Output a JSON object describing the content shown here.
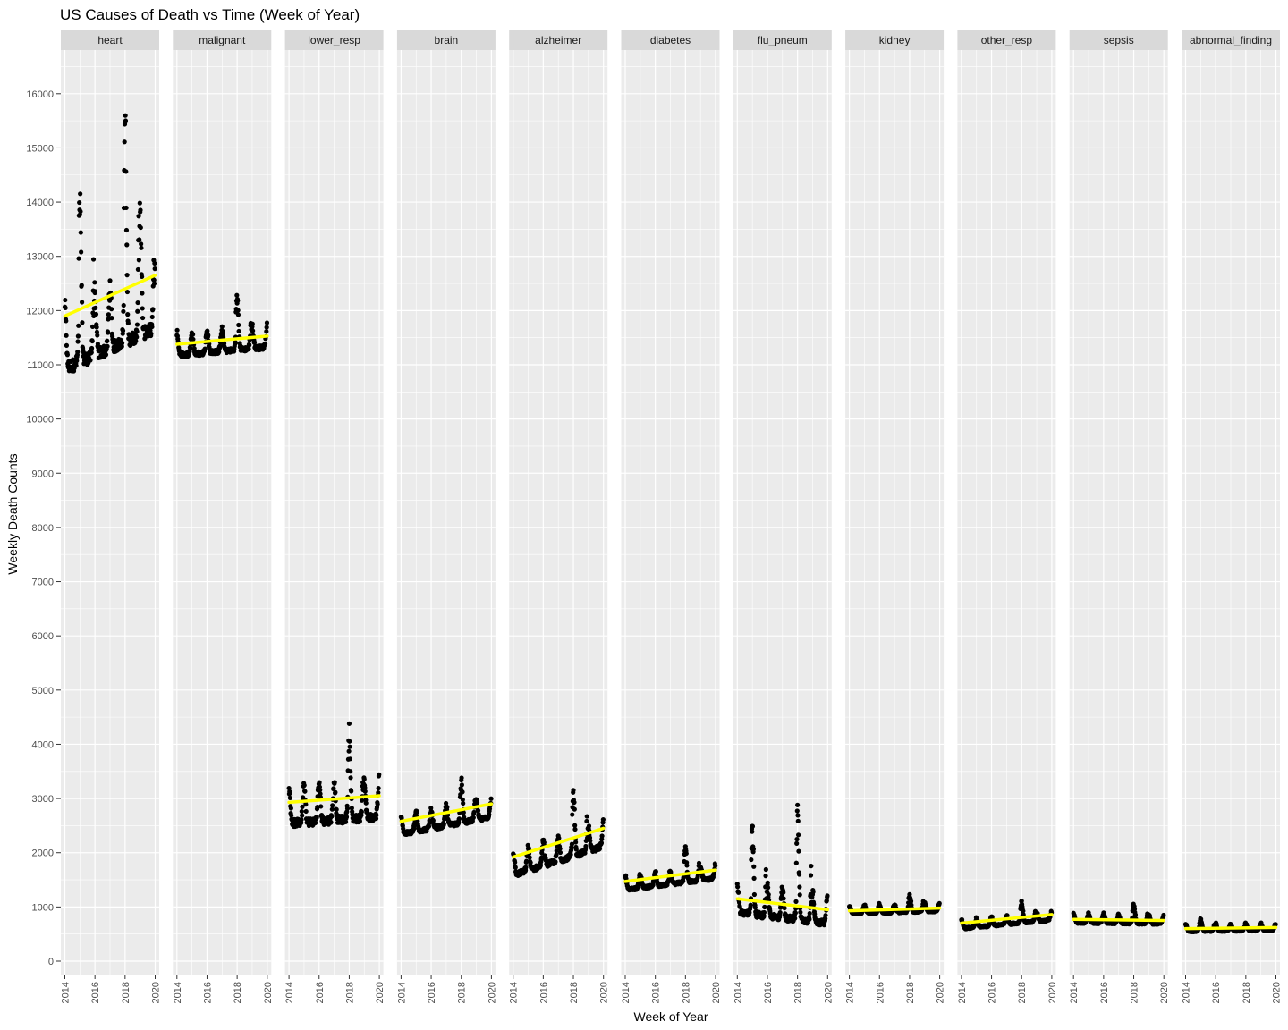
{
  "chart_data": {
    "type": "scatter",
    "title": "US Causes of Death vs Time (Week of Year)",
    "xlabel": "Week of Year",
    "ylabel": "Weekly Death Counts",
    "xlim": [
      2014,
      2020
    ],
    "ylim": [
      0,
      16000
    ],
    "x_ticks": [
      2014,
      2016,
      2018,
      2020
    ],
    "y_ticks": [
      0,
      1000,
      2000,
      3000,
      4000,
      5000,
      6000,
      7000,
      8000,
      9000,
      10000,
      11000,
      12000,
      13000,
      14000,
      15000,
      16000
    ],
    "grid": true,
    "trend_line_color": "#FFFF00",
    "point_color": "#000000",
    "panel_background": "#EBEBEB",
    "strip_background": "#D9D9D9",
    "facets": [
      {
        "name": "heart",
        "trend": [
          11900,
          12650
        ],
        "pattern": {
          "base": 11300,
          "amp": 1300,
          "min": 10500,
          "peak_years": [
            {
              "year": 2015,
              "peak": 14900
            },
            {
              "year": 2018,
              "peak": 16000
            },
            {
              "year": 2019,
              "peak": 13900
            }
          ]
        }
      },
      {
        "name": "malignant",
        "trend": [
          11380,
          11530
        ],
        "pattern": {
          "base": 11250,
          "amp": 450,
          "min": 10900,
          "peak_years": [
            {
              "year": 2018,
              "peak": 12400
            }
          ]
        }
      },
      {
        "name": "lower_resp",
        "trend": [
          2930,
          3050
        ],
        "pattern": {
          "base": 2600,
          "amp": 800,
          "min": 2300,
          "peak_years": [
            {
              "year": 2018,
              "peak": 4350
            }
          ]
        }
      },
      {
        "name": "brain",
        "trend": [
          2580,
          2900
        ],
        "pattern": {
          "base": 2500,
          "amp": 400,
          "min": 2250,
          "peak_years": [
            {
              "year": 2018,
              "peak": 3350
            }
          ]
        }
      },
      {
        "name": "alzheimer",
        "trend": [
          1920,
          2450
        ],
        "pattern": {
          "base": 1850,
          "amp": 500,
          "min": 1500,
          "peak_years": [
            {
              "year": 2018,
              "peak": 3200
            }
          ]
        }
      },
      {
        "name": "diabetes",
        "trend": [
          1470,
          1680
        ],
        "pattern": {
          "base": 1420,
          "amp": 280,
          "min": 1300,
          "peak_years": [
            {
              "year": 2018,
              "peak": 2100
            }
          ]
        }
      },
      {
        "name": "flu_pneum",
        "trend": [
          1150,
          950
        ],
        "pattern": {
          "base": 800,
          "amp": 600,
          "min": 650,
          "peak_years": [
            {
              "year": 2015,
              "peak": 2600
            },
            {
              "year": 2018,
              "peak": 2950
            }
          ]
        }
      },
      {
        "name": "kidney",
        "trend": [
          930,
          980
        ],
        "pattern": {
          "base": 900,
          "amp": 170,
          "min": 820,
          "peak_years": [
            {
              "year": 2018,
              "peak": 1250
            }
          ]
        }
      },
      {
        "name": "other_resp",
        "trend": [
          700,
          860
        ],
        "pattern": {
          "base": 680,
          "amp": 180,
          "min": 580,
          "peak_years": [
            {
              "year": 2018,
              "peak": 1100
            }
          ]
        }
      },
      {
        "name": "sepsis",
        "trend": [
          770,
          750
        ],
        "pattern": {
          "base": 700,
          "amp": 180,
          "min": 640,
          "peak_years": [
            {
              "year": 2018,
              "peak": 1080
            }
          ]
        }
      },
      {
        "name": "abnormal_finding",
        "trend": [
          600,
          620
        ],
        "pattern": {
          "base": 560,
          "amp": 150,
          "min": 500,
          "peak_years": [
            {
              "year": 2015,
              "peak": 800
            }
          ]
        }
      }
    ]
  }
}
